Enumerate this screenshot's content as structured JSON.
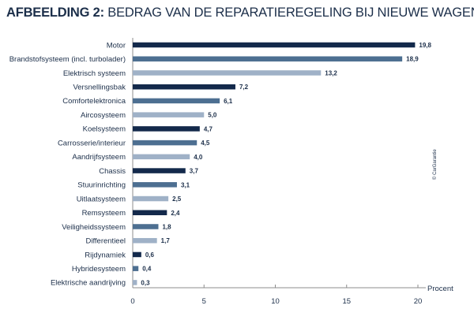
{
  "chart_data": {
    "type": "bar",
    "orientation": "horizontal",
    "title_bold": "AFBEELDING 2:",
    "title_rest": " BEDRAG VAN DE REPARATIEREGELING BIJ NIEUWE WAGENS",
    "xlabel": "Procent",
    "xlim": [
      0,
      20
    ],
    "xticks": [
      "0",
      "5",
      "10",
      "15",
      "20"
    ],
    "copyright": "© CarGarantie",
    "categories": [
      "Motor",
      "Brandstofsysteem (incl. turbolader)",
      "Elektrisch systeem",
      "Versnellingsbak",
      "Comfortelektronica",
      "Aircosysteem",
      "Koelsysteem",
      "Carrosserie/interieur",
      "Aandrijfsysteem",
      "Chassis",
      "Stuurinrichting",
      "Uitlaatsysteem",
      "Remsysteem",
      "Veiligheidssysteem",
      "Differentieel",
      "Rijdynamiek",
      "Hybridesysteem",
      "Elektrische aandrijving"
    ],
    "values": [
      19.8,
      18.9,
      13.2,
      7.2,
      6.1,
      5.0,
      4.7,
      4.5,
      4.0,
      3.7,
      3.1,
      2.5,
      2.4,
      1.8,
      1.7,
      0.6,
      0.4,
      0.3
    ],
    "value_labels": [
      "19,8",
      "18,9",
      "13,2",
      "7,2",
      "6,1",
      "5,0",
      "4,7",
      "4,5",
      "4,0",
      "3,7",
      "3,1",
      "2,5",
      "2,4",
      "1,8",
      "1,7",
      "0,6",
      "0,4",
      "0,3"
    ],
    "colors": {
      "dark": "#13294b",
      "mid": "#4d6f91",
      "light": "#9fb1c7",
      "text": "#1c2f4a",
      "axis": "#8c8c8c"
    },
    "color_pattern": [
      "dark",
      "mid",
      "light"
    ],
    "grid": false
  }
}
